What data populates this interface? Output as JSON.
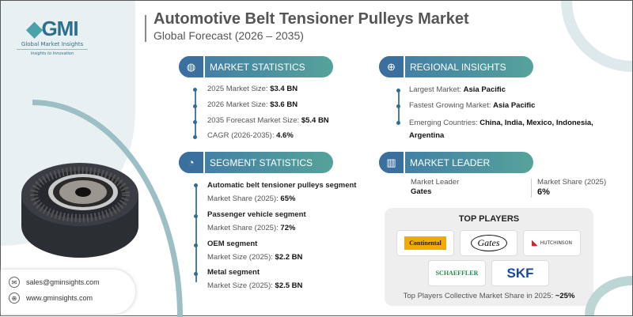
{
  "brand": {
    "logo_text": "GMI",
    "name": "Global Market Insights",
    "tagline": "Insights to Innovation"
  },
  "header": {
    "title": "Automotive Belt Tensioner Pulleys Market",
    "subtitle": "Global Forecast (2026 – 2035)"
  },
  "market_statistics": {
    "heading": "MARKET STATISTICS",
    "items": [
      {
        "label": "2025 Market Size: ",
        "value": "$3.4 BN"
      },
      {
        "label": "2026 Market Size: ",
        "value": "$3.6 BN"
      },
      {
        "label": "2035 Forecast Market Size: ",
        "value": "$5.4 BN"
      },
      {
        "label": "CAGR (2026-2035): ",
        "value": "4.6%"
      }
    ]
  },
  "regional_insights": {
    "heading": "REGIONAL INSIGHTS",
    "items": [
      {
        "label": "Largest Market: ",
        "value": "Asia Pacific"
      },
      {
        "label": "Fastest Growing Market: ",
        "value": "Asia Pacific"
      },
      {
        "label": "Emerging Countries: ",
        "value": "China, India, Mexico, Indonesia, Argentina"
      }
    ]
  },
  "segment_statistics": {
    "heading": "SEGMENT STATISTICS",
    "items": [
      {
        "name": "Automatic belt tensioner pulleys segment",
        "label": "Market Share (2025): ",
        "value": "65%"
      },
      {
        "name": "Passenger vehicle segment",
        "label": "Market Share (2025): ",
        "value": "72%"
      },
      {
        "name": "OEM segment",
        "label": "Market Size (2025): ",
        "value": "$2.2 BN"
      },
      {
        "name": "Metal segment",
        "label": "Market Size (2025): ",
        "value": "$2.5 BN"
      }
    ]
  },
  "market_leader": {
    "heading": "MARKET LEADER",
    "leader_label": "Market Leader",
    "leader": "Gates",
    "share_label": "Market Share (2025)",
    "share": "6%"
  },
  "top_players": {
    "heading": "TOP PLAYERS",
    "logos": [
      "Continental",
      "Gates",
      "HUTCHINSON",
      "SCHAEFFLER",
      "SKF"
    ],
    "footer_label": "Top Players Collective Market Share in 2025: ",
    "footer_value": "~25%"
  },
  "contact": {
    "email": "sales@gminsights.com",
    "website": "www.gminsights.com"
  },
  "colors": {
    "accent_blue": "#3f79a8",
    "accent_teal": "#55a39a"
  }
}
